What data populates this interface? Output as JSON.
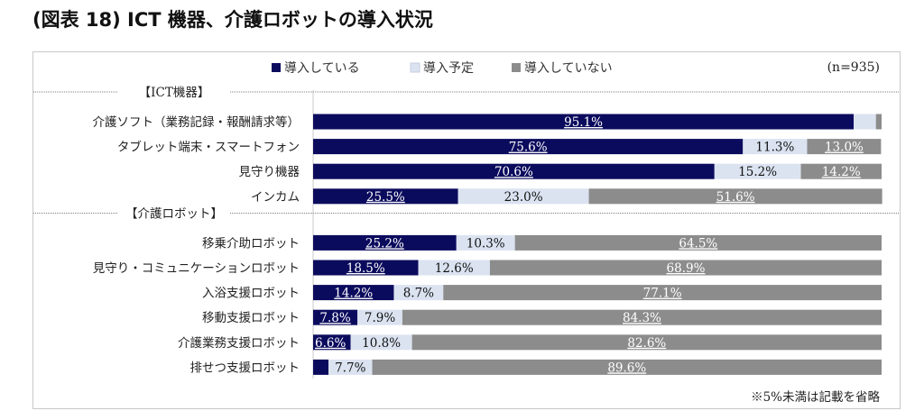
{
  "page": {
    "title": "(図表 18) ICT 機器、介護ロボットの導入状況"
  },
  "chart_data": {
    "type": "bar",
    "orientation": "horizontal",
    "stacked": true,
    "percent_stacked": true,
    "title": "(図表 18) ICT 機器、介護ロボットの導入状況",
    "sample_size": "(n=935)",
    "note": "※5%未満は記載を省略",
    "legend_position": "top",
    "xlim": [
      0,
      100
    ],
    "series": [
      {
        "name": "導入している",
        "color": "#0b0b5e",
        "label_color": "#ffffff"
      },
      {
        "name": "導入予定",
        "color": "#dbe3f1",
        "label_color": "#111111"
      },
      {
        "name": "導入していない",
        "color": "#8c8c8c",
        "label_color": "#ffffff"
      }
    ],
    "groups": [
      {
        "label": "【ICT機器】",
        "categories": [
          {
            "name": "介護ソフト（業務記録・報酬請求等）",
            "values": [
              95.1,
              3.9,
              1.0
            ],
            "labels": [
              "95.1%",
              "",
              ""
            ]
          },
          {
            "name": "タブレット端末・スマートフォン",
            "values": [
              75.6,
              11.3,
              13.0
            ],
            "labels": [
              "75.6%",
              "11.3%",
              "13.0%"
            ]
          },
          {
            "name": "見守り機器",
            "values": [
              70.6,
              15.2,
              14.2
            ],
            "labels": [
              "70.6%",
              "15.2%",
              "14.2%"
            ]
          },
          {
            "name": "インカム",
            "values": [
              25.5,
              23.0,
              51.6
            ],
            "labels": [
              "25.5%",
              "23.0%",
              "51.6%"
            ]
          }
        ]
      },
      {
        "label": "【介護ロボット】",
        "categories": [
          {
            "name": "移乗介助ロボット",
            "values": [
              25.2,
              10.3,
              64.5
            ],
            "labels": [
              "25.2%",
              "10.3%",
              "64.5%"
            ]
          },
          {
            "name": "見守り・コミュニケーションロボット",
            "values": [
              18.5,
              12.6,
              68.9
            ],
            "labels": [
              "18.5%",
              "12.6%",
              "68.9%"
            ]
          },
          {
            "name": "入浴支援ロボット",
            "values": [
              14.2,
              8.7,
              77.1
            ],
            "labels": [
              "14.2%",
              "8.7%",
              "77.1%"
            ]
          },
          {
            "name": "移動支援ロボット",
            "values": [
              7.8,
              7.9,
              84.3
            ],
            "labels": [
              "7.8%",
              "7.9%",
              "84.3%"
            ]
          },
          {
            "name": "介護業務支援ロボット",
            "values": [
              6.6,
              10.8,
              82.6
            ],
            "labels": [
              "6.6%",
              "10.8%",
              "82.6%"
            ]
          },
          {
            "name": "排せつ支援ロボット",
            "values": [
              2.7,
              7.7,
              89.6
            ],
            "labels": [
              "",
              "7.7%",
              "89.6%"
            ]
          }
        ]
      }
    ]
  }
}
